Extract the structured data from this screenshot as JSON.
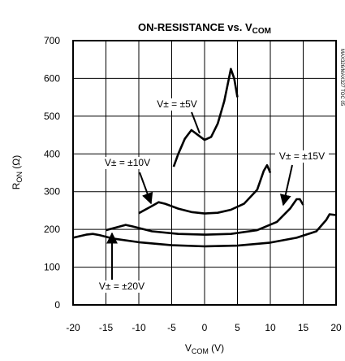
{
  "chart_data": {
    "type": "line",
    "title": "ON-RESISTANCE vs. V",
    "title_subscript": "COM",
    "y_label": "R",
    "y_label_subscript": "ON",
    "y_label_unit": " (Ω)",
    "x_label": "V",
    "x_label_subscript": "COM",
    "x_label_unit": " (V)",
    "side_note": "MAX326/MAX327 TOC 05",
    "xlim": [
      -20,
      20
    ],
    "xticks": [
      -20,
      -15,
      -10,
      -5,
      0,
      5,
      10,
      15,
      20
    ],
    "ylim": [
      0,
      700
    ],
    "yticks": [
      0,
      100,
      200,
      300,
      400,
      500,
      600,
      700
    ],
    "grid": true,
    "series": [
      {
        "name": "V± = ±5V",
        "color": "#000000",
        "x": [
          -4.7,
          -4,
          -3,
          -2,
          -1,
          0,
          1,
          2,
          3,
          4,
          4.5,
          5
        ],
        "values": [
          366,
          400,
          440,
          463,
          450,
          437,
          445,
          480,
          540,
          625,
          600,
          550
        ]
      },
      {
        "name": "V± = ±10V",
        "color": "#000000",
        "x": [
          -10,
          -8,
          -7,
          -6,
          -4,
          -2,
          0,
          2,
          4,
          6,
          8,
          9,
          9.5,
          10
        ],
        "values": [
          243,
          262,
          272,
          268,
          255,
          246,
          242,
          244,
          252,
          268,
          305,
          355,
          370,
          350
        ]
      },
      {
        "name": "V± = ±15V",
        "color": "#000000",
        "x": [
          -15,
          -12,
          -11,
          -8,
          -4,
          0,
          4,
          8,
          11,
          13,
          14,
          14.5,
          15
        ],
        "values": [
          198,
          212,
          208,
          195,
          188,
          186,
          188,
          198,
          220,
          255,
          280,
          280,
          265
        ]
      },
      {
        "name": "V± = ±20V",
        "color": "#000000",
        "x": [
          -20,
          -18,
          -17,
          -16,
          -14,
          -10,
          -5,
          0,
          5,
          10,
          14,
          17,
          18.5,
          19,
          20
        ],
        "values": [
          178,
          186,
          188,
          185,
          176,
          166,
          158,
          155,
          157,
          165,
          178,
          195,
          225,
          240,
          238
        ]
      }
    ]
  }
}
